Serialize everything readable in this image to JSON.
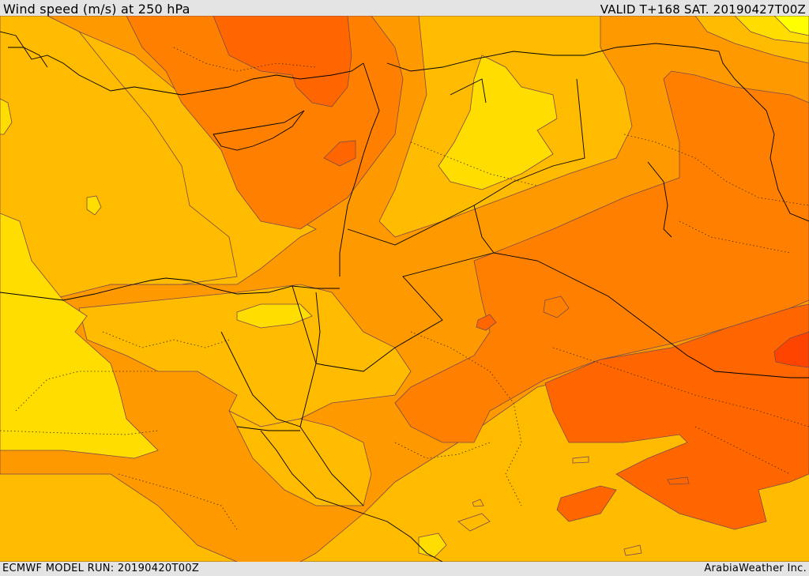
{
  "header": {
    "title": "Wind speed (m/s) at 250 hPa",
    "valid": "VALID T+168 SAT. 20190427T00Z"
  },
  "footer": {
    "model_run": "ECMWF MODEL RUN: 20190420T00Z",
    "credit": "ArabiaWeather Inc."
  },
  "map": {
    "variable": "wind speed",
    "level": "250 hPa",
    "units": "m/s",
    "colors": {
      "band_1": "#ffff00",
      "band_2": "#ffdd00",
      "band_3": "#ffbb00",
      "band_4": "#ff9900",
      "band_5": "#ff8000",
      "band_6": "#ff6600",
      "band_7": "#ff4400",
      "contour": "#7a4a4a",
      "border": "#000000"
    }
  }
}
